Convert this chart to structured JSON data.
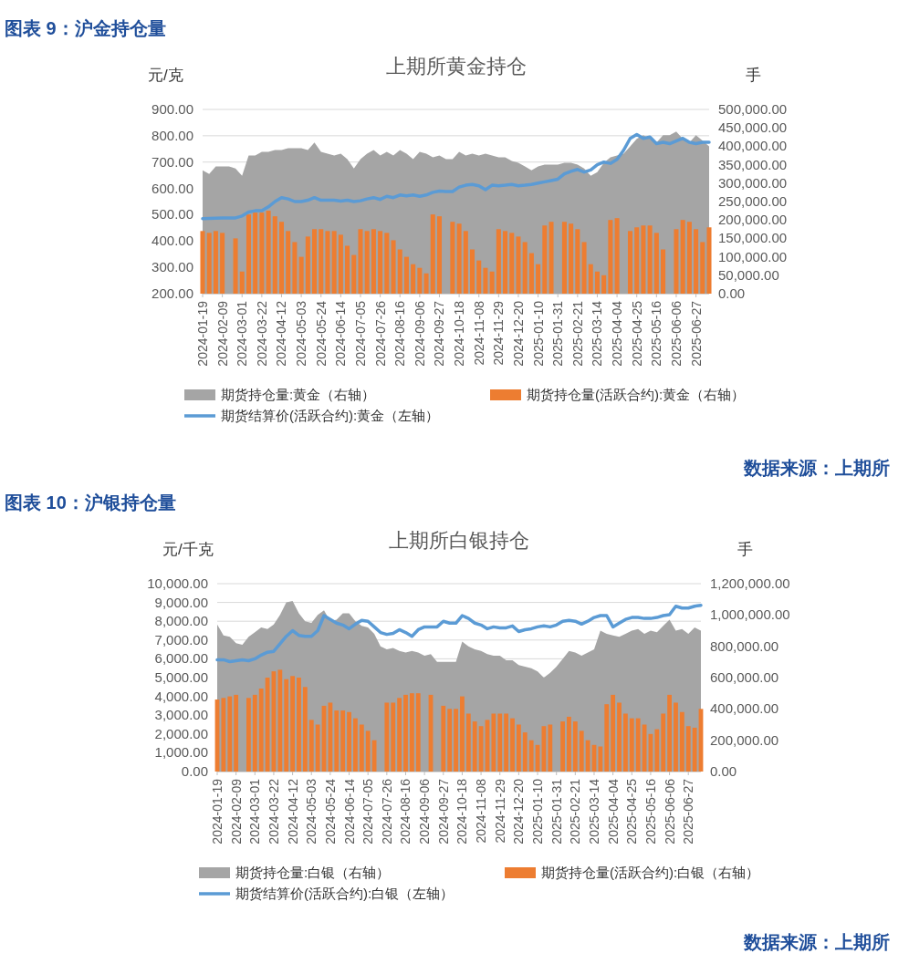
{
  "chart_data": [
    {
      "type": "bar",
      "title": "上期所黄金持仓",
      "ylabel": "元/克",
      "y2label": "手",
      "annotations": [
        "图表 9：沪金持仓量",
        "数据来源：上期所"
      ],
      "x": [
        "2024-01-19",
        "2024-01-26",
        "2024-02-02",
        "2024-02-09",
        "2024-02-16",
        "2024-02-23",
        "2024-03-01",
        "2024-03-08",
        "2024-03-15",
        "2024-03-22",
        "2024-03-29",
        "2024-04-05",
        "2024-04-12",
        "2024-04-19",
        "2024-04-26",
        "2024-05-03",
        "2024-05-10",
        "2024-05-17",
        "2024-05-24",
        "2024-05-31",
        "2024-06-07",
        "2024-06-14",
        "2024-06-21",
        "2024-06-28",
        "2024-07-05",
        "2024-07-12",
        "2024-07-19",
        "2024-07-26",
        "2024-08-02",
        "2024-08-09",
        "2024-08-16",
        "2024-08-23",
        "2024-08-30",
        "2024-09-06",
        "2024-09-13",
        "2024-09-20",
        "2024-09-27",
        "2024-10-04",
        "2024-10-11",
        "2024-10-18",
        "2024-10-25",
        "2024-11-01",
        "2024-11-08",
        "2024-11-15",
        "2024-11-22",
        "2024-11-29",
        "2024-12-06",
        "2024-12-13",
        "2024-12-20",
        "2024-12-27",
        "2025-01-03",
        "2025-01-10",
        "2025-01-17",
        "2025-01-24",
        "2025-01-31",
        "2025-02-07",
        "2025-02-14",
        "2025-02-21",
        "2025-02-28",
        "2025-03-07",
        "2025-03-14",
        "2025-03-21",
        "2025-03-28",
        "2025-04-04",
        "2025-04-11",
        "2025-04-18",
        "2025-04-25",
        "2025-05-02",
        "2025-05-09",
        "2025-05-16",
        "2025-05-23",
        "2025-05-30",
        "2025-06-06",
        "2025-06-13",
        "2025-06-20",
        "2025-06-27",
        "2025-07-04",
        "2025-07-11"
      ],
      "xlim": [
        "2024-01-19",
        "2025-07-11"
      ],
      "xticks": [
        "2024-01-19",
        "2024-02-09",
        "2024-03-01",
        "2024-03-22",
        "2024-04-12",
        "2024-05-03",
        "2024-05-24",
        "2024-06-14",
        "2024-07-05",
        "2024-07-26",
        "2024-08-16",
        "2024-09-06",
        "2024-09-27",
        "2024-10-18",
        "2024-11-08",
        "2024-11-29",
        "2024-12-20",
        "2025-01-10",
        "2025-01-31",
        "2025-02-21",
        "2025-03-14",
        "2025-04-04",
        "2025-04-25",
        "2025-05-16",
        "2025-06-06",
        "2025-06-27"
      ],
      "ylim": [
        200,
        900
      ],
      "yticks": [
        {
          "value": 200,
          "label": "200.00"
        },
        {
          "value": 300,
          "label": "300.00"
        },
        {
          "value": 400,
          "label": "400.00"
        },
        {
          "value": 500,
          "label": "500.00"
        },
        {
          "value": 600,
          "label": "600.00"
        },
        {
          "value": 700,
          "label": "700.00"
        },
        {
          "value": 800,
          "label": "800.00"
        },
        {
          "value": 900,
          "label": "900.00"
        }
      ],
      "y2lim": [
        0,
        500000
      ],
      "y2ticks": [
        {
          "value": 0,
          "label": "0.00"
        },
        {
          "value": 50000,
          "label": "50,000.00"
        },
        {
          "value": 100000,
          "label": "100,000.00"
        },
        {
          "value": 150000,
          "label": "150,000.00"
        },
        {
          "value": 200000,
          "label": "200,000.00"
        },
        {
          "value": 250000,
          "label": "250,000.00"
        },
        {
          "value": 300000,
          "label": "300,000.00"
        },
        {
          "value": 350000,
          "label": "350,000.00"
        },
        {
          "value": 400000,
          "label": "400,000.00"
        },
        {
          "value": 450000,
          "label": "450,000.00"
        },
        {
          "value": 500000,
          "label": "500,000.00"
        }
      ],
      "grid": "y",
      "legend": "bottom",
      "series": [
        {
          "name": "期货持仓量:黄金（右轴）",
          "type": "area",
          "axis": "y2",
          "color": "#a5a5a5",
          "values": [
            335000,
            325000,
            345000,
            345000,
            345000,
            340000,
            320000,
            375000,
            375000,
            385000,
            385000,
            390000,
            390000,
            395000,
            395000,
            395000,
            390000,
            410000,
            385000,
            380000,
            375000,
            380000,
            365000,
            340000,
            365000,
            380000,
            390000,
            375000,
            385000,
            375000,
            390000,
            380000,
            365000,
            385000,
            380000,
            370000,
            375000,
            365000,
            365000,
            385000,
            375000,
            380000,
            375000,
            380000,
            375000,
            370000,
            370000,
            360000,
            355000,
            345000,
            335000,
            345000,
            350000,
            350000,
            350000,
            355000,
            355000,
            350000,
            340000,
            320000,
            330000,
            355000,
            370000,
            375000,
            380000,
            400000,
            420000,
            430000,
            420000,
            410000,
            430000,
            430000,
            440000,
            420000,
            410000,
            430000,
            415000,
            400000
          ]
        },
        {
          "name": "期货持仓量(活跃合约):黄金（右轴）",
          "axis": "y2",
          "color": "#ed7d31",
          "values": [
            170000,
            165000,
            170000,
            165000,
            null,
            150000,
            60000,
            215000,
            220000,
            220000,
            225000,
            210000,
            195000,
            170000,
            140000,
            100000,
            155000,
            175000,
            175000,
            170000,
            170000,
            160000,
            130000,
            105000,
            175000,
            170000,
            175000,
            170000,
            165000,
            145000,
            120000,
            100000,
            80000,
            70000,
            55000,
            215000,
            210000,
            null,
            195000,
            190000,
            170000,
            120000,
            90000,
            70000,
            60000,
            175000,
            170000,
            165000,
            155000,
            140000,
            110000,
            80000,
            185000,
            195000,
            null,
            195000,
            190000,
            175000,
            140000,
            80000,
            60000,
            50000,
            200000,
            205000,
            null,
            170000,
            180000,
            185000,
            185000,
            165000,
            120000,
            null,
            175000,
            200000,
            195000,
            175000,
            140000,
            180000
          ]
        },
        {
          "name": "期货结算价(活跃合约):黄金（左轴）",
          "type": "line",
          "axis": "y",
          "color": "#5b9bd5",
          "values": [
            485,
            486,
            487,
            488,
            488,
            488,
            495,
            510,
            515,
            515,
            530,
            550,
            565,
            560,
            550,
            550,
            555,
            565,
            555,
            555,
            555,
            552,
            555,
            550,
            553,
            560,
            565,
            558,
            570,
            565,
            575,
            572,
            575,
            570,
            575,
            585,
            590,
            588,
            588,
            605,
            612,
            615,
            610,
            595,
            612,
            610,
            612,
            615,
            610,
            612,
            615,
            620,
            625,
            630,
            635,
            655,
            665,
            672,
            662,
            670,
            690,
            700,
            695,
            710,
            745,
            790,
            805,
            790,
            795,
            770,
            775,
            770,
            780,
            790,
            775,
            770,
            775,
            775
          ]
        }
      ]
    },
    {
      "type": "bar",
      "title": "上期所白银持仓",
      "ylabel": "元/千克",
      "y2label": "手",
      "annotations": [
        "图表 10：沪银持仓量",
        "数据来源：上期所"
      ],
      "x": [
        "2024-01-19",
        "2024-01-26",
        "2024-02-02",
        "2024-02-09",
        "2024-02-16",
        "2024-02-23",
        "2024-03-01",
        "2024-03-08",
        "2024-03-15",
        "2024-03-22",
        "2024-03-29",
        "2024-04-05",
        "2024-04-12",
        "2024-04-19",
        "2024-04-26",
        "2024-05-03",
        "2024-05-10",
        "2024-05-17",
        "2024-05-24",
        "2024-05-31",
        "2024-06-07",
        "2024-06-14",
        "2024-06-21",
        "2024-06-28",
        "2024-07-05",
        "2024-07-12",
        "2024-07-19",
        "2024-07-26",
        "2024-08-02",
        "2024-08-09",
        "2024-08-16",
        "2024-08-23",
        "2024-08-30",
        "2024-09-06",
        "2024-09-13",
        "2024-09-20",
        "2024-09-27",
        "2024-10-04",
        "2024-10-11",
        "2024-10-18",
        "2024-10-25",
        "2024-11-01",
        "2024-11-08",
        "2024-11-15",
        "2024-11-22",
        "2024-11-29",
        "2024-12-06",
        "2024-12-13",
        "2024-12-20",
        "2024-12-27",
        "2025-01-03",
        "2025-01-10",
        "2025-01-17",
        "2025-01-24",
        "2025-01-31",
        "2025-02-07",
        "2025-02-14",
        "2025-02-21",
        "2025-02-28",
        "2025-03-07",
        "2025-03-14",
        "2025-03-21",
        "2025-03-28",
        "2025-04-04",
        "2025-04-11",
        "2025-04-18",
        "2025-04-25",
        "2025-05-02",
        "2025-05-09",
        "2025-05-16",
        "2025-05-23",
        "2025-05-30",
        "2025-06-06",
        "2025-06-13",
        "2025-06-20",
        "2025-06-27",
        "2025-07-04",
        "2025-07-11"
      ],
      "xlim": [
        "2024-01-19",
        "2025-07-11"
      ],
      "xticks": [
        "2024-01-19",
        "2024-02-09",
        "2024-03-01",
        "2024-03-22",
        "2024-04-12",
        "2024-05-03",
        "2024-05-24",
        "2024-06-14",
        "2024-07-05",
        "2024-07-26",
        "2024-08-16",
        "2024-09-06",
        "2024-09-27",
        "2024-10-18",
        "2024-11-08",
        "2024-11-29",
        "2024-12-20",
        "2025-01-10",
        "2025-01-31",
        "2025-02-21",
        "2025-03-14",
        "2025-04-04",
        "2025-04-25",
        "2025-05-16",
        "2025-06-06",
        "2025-06-27"
      ],
      "ylim": [
        0,
        10000
      ],
      "yticks": [
        {
          "value": 0,
          "label": "0.00"
        },
        {
          "value": 1000,
          "label": "1,000.00"
        },
        {
          "value": 2000,
          "label": "2,000.00"
        },
        {
          "value": 3000,
          "label": "3,000.00"
        },
        {
          "value": 4000,
          "label": "4,000.00"
        },
        {
          "value": 5000,
          "label": "5,000.00"
        },
        {
          "value": 6000,
          "label": "6,000.00"
        },
        {
          "value": 7000,
          "label": "7,000.00"
        },
        {
          "value": 8000,
          "label": "8,000.00"
        },
        {
          "value": 9000,
          "label": "9,000.00"
        },
        {
          "value": 10000,
          "label": "10,000.00"
        }
      ],
      "y2lim": [
        0,
        1200000
      ],
      "y2ticks": [
        {
          "value": 0,
          "label": "0.00"
        },
        {
          "value": 200000,
          "label": "200,000.00"
        },
        {
          "value": 400000,
          "label": "400,000.00"
        },
        {
          "value": 600000,
          "label": "600,000.00"
        },
        {
          "value": 800000,
          "label": "800,000.00"
        },
        {
          "value": 1000000,
          "label": "1,000,000.00"
        },
        {
          "value": 1200000,
          "label": "1,200,000.00"
        }
      ],
      "grid": "y",
      "legend": "bottom",
      "series": [
        {
          "name": "期货持仓量:白银（右轴）",
          "type": "area",
          "axis": "y2",
          "color": "#a5a5a5",
          "values": [
            940000,
            870000,
            860000,
            820000,
            810000,
            860000,
            890000,
            920000,
            910000,
            940000,
            1000000,
            1080000,
            1090000,
            1010000,
            960000,
            950000,
            1000000,
            1030000,
            960000,
            970000,
            1010000,
            1010000,
            960000,
            930000,
            920000,
            880000,
            800000,
            780000,
            790000,
            770000,
            760000,
            770000,
            760000,
            740000,
            750000,
            700000,
            700000,
            700000,
            700000,
            830000,
            800000,
            780000,
            770000,
            750000,
            740000,
            740000,
            710000,
            710000,
            680000,
            670000,
            660000,
            640000,
            600000,
            630000,
            670000,
            720000,
            770000,
            760000,
            740000,
            760000,
            780000,
            900000,
            880000,
            870000,
            860000,
            880000,
            900000,
            910000,
            880000,
            900000,
            890000,
            930000,
            970000,
            900000,
            910000,
            880000,
            920000,
            900000
          ]
        },
        {
          "name": "期货持仓量(活跃合约):白银（右轴）",
          "axis": "y2",
          "color": "#ed7d31",
          "values": [
            460000,
            470000,
            480000,
            490000,
            null,
            470000,
            490000,
            530000,
            600000,
            640000,
            650000,
            590000,
            610000,
            600000,
            540000,
            330000,
            300000,
            420000,
            440000,
            390000,
            390000,
            380000,
            340000,
            300000,
            260000,
            200000,
            null,
            440000,
            440000,
            470000,
            490000,
            500000,
            500000,
            null,
            490000,
            null,
            420000,
            400000,
            400000,
            480000,
            370000,
            320000,
            290000,
            330000,
            370000,
            370000,
            370000,
            340000,
            300000,
            250000,
            200000,
            170000,
            290000,
            300000,
            null,
            320000,
            350000,
            320000,
            260000,
            200000,
            170000,
            160000,
            430000,
            490000,
            440000,
            370000,
            340000,
            340000,
            300000,
            240000,
            270000,
            370000,
            490000,
            440000,
            380000,
            290000,
            280000,
            400000
          ]
        },
        {
          "name": "期货结算价(活跃合约):白银（左轴）",
          "type": "line",
          "axis": "y",
          "color": "#5b9bd5",
          "values": [
            5950,
            5950,
            5850,
            5900,
            5950,
            5900,
            6000,
            6200,
            6350,
            6400,
            6800,
            7200,
            7500,
            7250,
            7200,
            7200,
            7500,
            8300,
            8100,
            7900,
            7800,
            7600,
            7850,
            8050,
            8000,
            7700,
            7400,
            7300,
            7350,
            7550,
            7400,
            7200,
            7550,
            7700,
            7700,
            7700,
            8000,
            7900,
            7900,
            8300,
            8150,
            7900,
            7800,
            7600,
            7700,
            7650,
            7650,
            7750,
            7450,
            7550,
            7600,
            7700,
            7750,
            7700,
            7800,
            8000,
            8050,
            8000,
            7850,
            8000,
            8200,
            8300,
            8300,
            7700,
            7900,
            8100,
            8200,
            8200,
            8150,
            8150,
            8200,
            8300,
            8350,
            8800,
            8700,
            8700,
            8800,
            8850
          ]
        }
      ]
    }
  ]
}
